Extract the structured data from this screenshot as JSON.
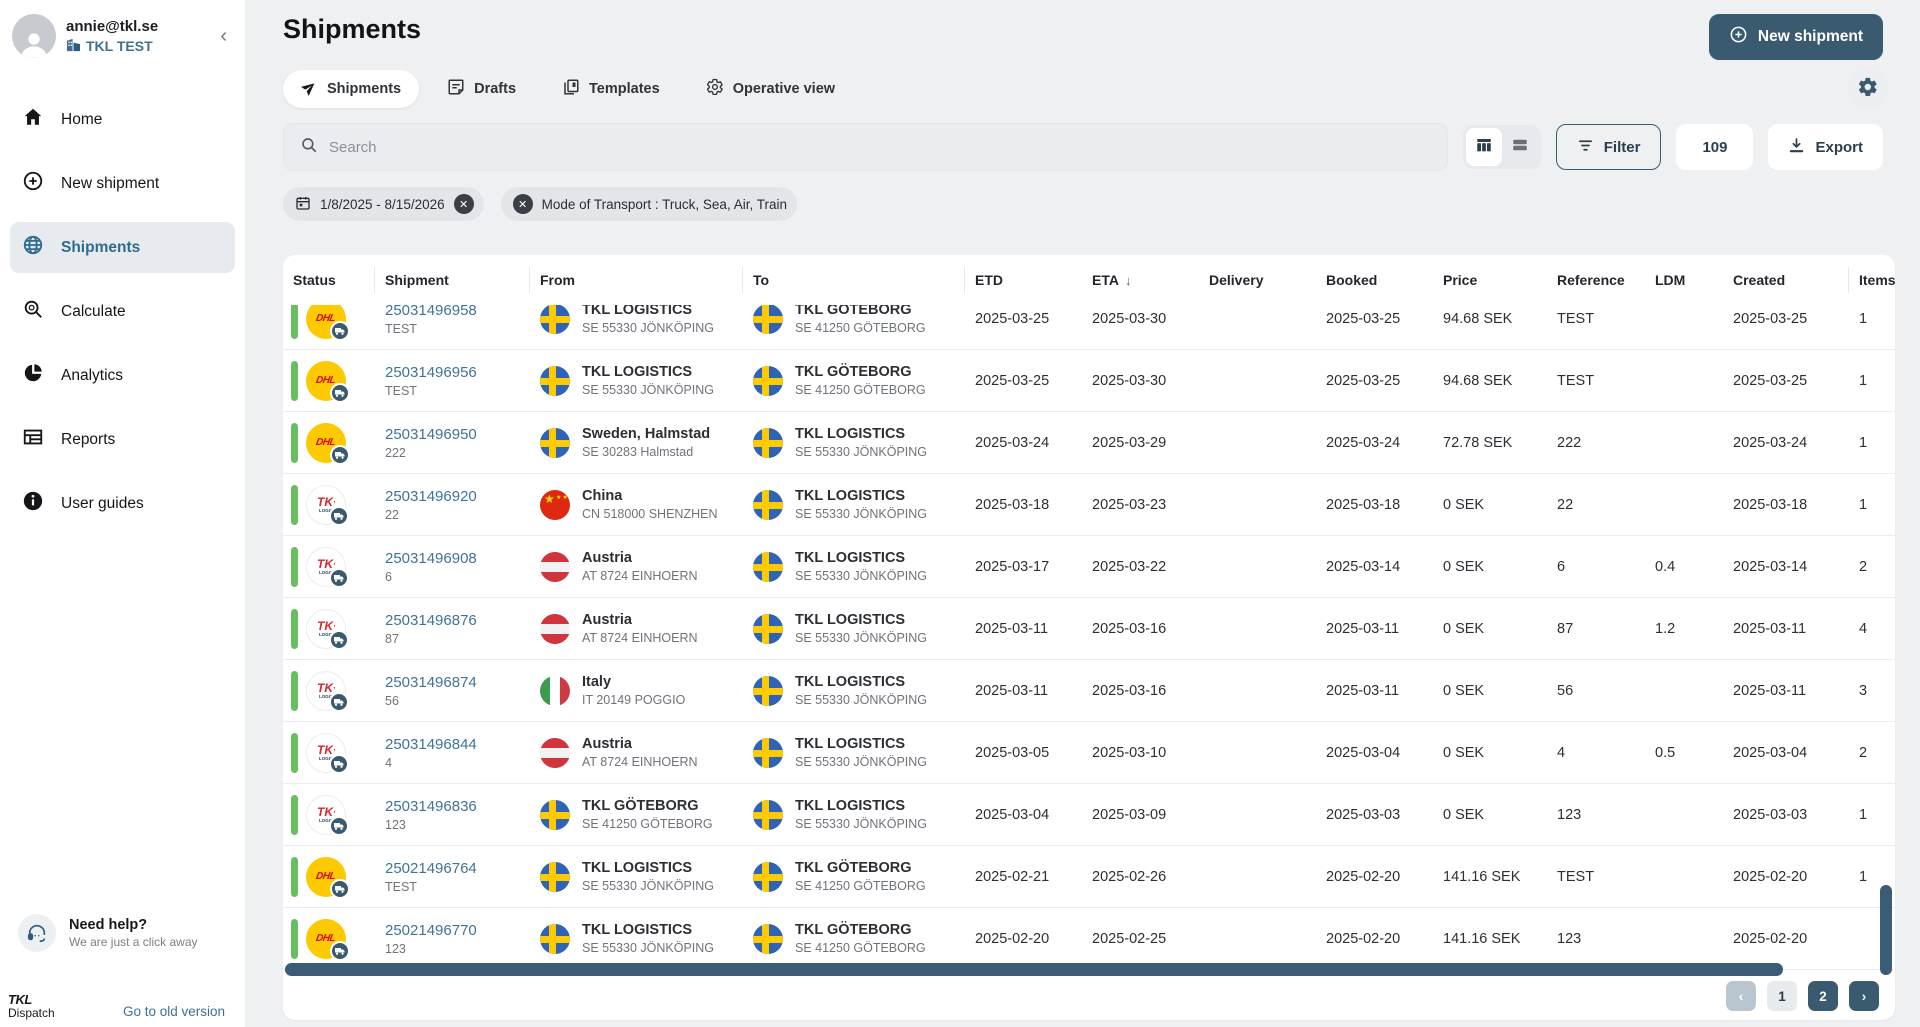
{
  "colors": {
    "primary": "#3a5a70",
    "link": "#3f7397",
    "status_green": "#6abe62",
    "page_bg": "#eff0f2",
    "dhl_yellow": "#fdc900",
    "dhl_red": "#d40511"
  },
  "sidebar": {
    "user": {
      "email": "annie@tkl.se",
      "company": "TKL TEST"
    },
    "items": [
      {
        "label": "Home",
        "icon": "home-icon",
        "active": false
      },
      {
        "label": "New shipment",
        "icon": "plus-circle-icon",
        "active": false
      },
      {
        "label": "Shipments",
        "icon": "globe-icon",
        "active": true
      },
      {
        "label": "Calculate",
        "icon": "magnifier-icon",
        "active": false
      },
      {
        "label": "Analytics",
        "icon": "pie-chart-icon",
        "active": false
      },
      {
        "label": "Reports",
        "icon": "report-table-icon",
        "active": false
      },
      {
        "label": "User guides",
        "icon": "info-icon",
        "active": false
      }
    ],
    "help": {
      "title": "Need help?",
      "subtitle": "We are just a click away"
    },
    "logo": {
      "line1": "TKL",
      "line2": "Dispatch"
    },
    "old_version_link": "Go to old version"
  },
  "header": {
    "title": "Shipments",
    "new_shipment_label": "New shipment"
  },
  "tabs": [
    {
      "label": "Shipments",
      "icon": "send-icon",
      "active": true
    },
    {
      "label": "Drafts",
      "icon": "draft-note-icon",
      "active": false
    },
    {
      "label": "Templates",
      "icon": "templates-icon",
      "active": false
    },
    {
      "label": "Operative view",
      "icon": "gear-icon",
      "active": false
    }
  ],
  "toolbar": {
    "search_placeholder": "Search",
    "filter_label": "Filter",
    "result_count": "109",
    "export_label": "Export"
  },
  "filter_chips": [
    {
      "label": "1/8/2025 - 8/15/2026",
      "leading_icon": "calendar-icon",
      "close": "x"
    },
    {
      "label": "Mode of Transport : Truck, Sea, Air, Train",
      "leading_icon": "x-circle-icon",
      "close": ""
    }
  ],
  "table": {
    "columns": [
      {
        "key": "status",
        "label": "Status"
      },
      {
        "key": "shipment",
        "label": "Shipment"
      },
      {
        "key": "from",
        "label": "From"
      },
      {
        "key": "to",
        "label": "To"
      },
      {
        "key": "etd",
        "label": "ETD"
      },
      {
        "key": "eta",
        "label": "ETA",
        "sort": "desc"
      },
      {
        "key": "delivery",
        "label": "Delivery"
      },
      {
        "key": "booked",
        "label": "Booked"
      },
      {
        "key": "price",
        "label": "Price"
      },
      {
        "key": "reference",
        "label": "Reference"
      },
      {
        "key": "ldm",
        "label": "LDM"
      },
      {
        "key": "created",
        "label": "Created"
      },
      {
        "key": "items",
        "label": "Items"
      }
    ],
    "rows": [
      {
        "status": "green",
        "carrier": "dhl",
        "number": "25031496958",
        "ref": "TEST",
        "from": {
          "flag": "sweden",
          "name": "TKL LOGISTICS",
          "sub": "SE 55330 JÖNKÖPING"
        },
        "to": {
          "flag": "sweden",
          "name": "TKL GÖTEBORG",
          "sub": "SE 41250 GÖTEBORG"
        },
        "etd": "2025-03-25",
        "eta": "2025-03-30",
        "delivery": "",
        "booked": "2025-03-25",
        "price": "94.68 SEK",
        "reference": "TEST",
        "ldm": "",
        "created": "2025-03-25",
        "items": "1"
      },
      {
        "status": "green",
        "carrier": "dhl",
        "number": "25031496956",
        "ref": "TEST",
        "from": {
          "flag": "sweden",
          "name": "TKL LOGISTICS",
          "sub": "SE 55330 JÖNKÖPING"
        },
        "to": {
          "flag": "sweden",
          "name": "TKL GÖTEBORG",
          "sub": "SE 41250 GÖTEBORG"
        },
        "etd": "2025-03-25",
        "eta": "2025-03-30",
        "delivery": "",
        "booked": "2025-03-25",
        "price": "94.68 SEK",
        "reference": "TEST",
        "ldm": "",
        "created": "2025-03-25",
        "items": "1"
      },
      {
        "status": "green",
        "carrier": "dhl",
        "number": "25031496950",
        "ref": "222",
        "from": {
          "flag": "sweden",
          "name": "Sweden, Halmstad",
          "sub": "SE 30283 Halmstad"
        },
        "to": {
          "flag": "sweden",
          "name": "TKL LOGISTICS",
          "sub": "SE 55330 JÖNKÖPING"
        },
        "etd": "2025-03-24",
        "eta": "2025-03-29",
        "delivery": "",
        "booked": "2025-03-24",
        "price": "72.78 SEK",
        "reference": "222",
        "ldm": "",
        "created": "2025-03-24",
        "items": "1"
      },
      {
        "status": "green",
        "carrier": "tkl",
        "number": "25031496920",
        "ref": "22",
        "from": {
          "flag": "china",
          "name": "China",
          "sub": "CN 518000 SHENZHEN"
        },
        "to": {
          "flag": "sweden",
          "name": "TKL LOGISTICS",
          "sub": "SE 55330 JÖNKÖPING"
        },
        "etd": "2025-03-18",
        "eta": "2025-03-23",
        "delivery": "",
        "booked": "2025-03-18",
        "price": "0 SEK",
        "reference": "22",
        "ldm": "",
        "created": "2025-03-18",
        "items": "1"
      },
      {
        "status": "green",
        "carrier": "tkl",
        "number": "25031496908",
        "ref": "6",
        "from": {
          "flag": "austria",
          "name": "Austria",
          "sub": "AT 8724 EINHOERN"
        },
        "to": {
          "flag": "sweden",
          "name": "TKL LOGISTICS",
          "sub": "SE 55330 JÖNKÖPING"
        },
        "etd": "2025-03-17",
        "eta": "2025-03-22",
        "delivery": "",
        "booked": "2025-03-14",
        "price": "0 SEK",
        "reference": "6",
        "ldm": "0.4",
        "created": "2025-03-14",
        "items": "2"
      },
      {
        "status": "green",
        "carrier": "tkl",
        "number": "25031496876",
        "ref": "87",
        "from": {
          "flag": "austria",
          "name": "Austria",
          "sub": "AT 8724 EINHOERN"
        },
        "to": {
          "flag": "sweden",
          "name": "TKL LOGISTICS",
          "sub": "SE 55330 JÖNKÖPING"
        },
        "etd": "2025-03-11",
        "eta": "2025-03-16",
        "delivery": "",
        "booked": "2025-03-11",
        "price": "0 SEK",
        "reference": "87",
        "ldm": "1.2",
        "created": "2025-03-11",
        "items": "4"
      },
      {
        "status": "green",
        "carrier": "tkl",
        "number": "25031496874",
        "ref": "56",
        "from": {
          "flag": "italy",
          "name": "Italy",
          "sub": "IT 20149 POGGIO"
        },
        "to": {
          "flag": "sweden",
          "name": "TKL LOGISTICS",
          "sub": "SE 55330 JÖNKÖPING"
        },
        "etd": "2025-03-11",
        "eta": "2025-03-16",
        "delivery": "",
        "booked": "2025-03-11",
        "price": "0 SEK",
        "reference": "56",
        "ldm": "",
        "created": "2025-03-11",
        "items": "3"
      },
      {
        "status": "green",
        "carrier": "tkl",
        "number": "25031496844",
        "ref": "4",
        "from": {
          "flag": "austria",
          "name": "Austria",
          "sub": "AT 8724 EINHOERN"
        },
        "to": {
          "flag": "sweden",
          "name": "TKL LOGISTICS",
          "sub": "SE 55330 JÖNKÖPING"
        },
        "etd": "2025-03-05",
        "eta": "2025-03-10",
        "delivery": "",
        "booked": "2025-03-04",
        "price": "0 SEK",
        "reference": "4",
        "ldm": "0.5",
        "created": "2025-03-04",
        "items": "2"
      },
      {
        "status": "green",
        "carrier": "tkl",
        "number": "25031496836",
        "ref": "123",
        "from": {
          "flag": "sweden",
          "name": "TKL GÖTEBORG",
          "sub": "SE 41250 GÖTEBORG"
        },
        "to": {
          "flag": "sweden",
          "name": "TKL LOGISTICS",
          "sub": "SE 55330 JÖNKÖPING"
        },
        "etd": "2025-03-04",
        "eta": "2025-03-09",
        "delivery": "",
        "booked": "2025-03-03",
        "price": "0 SEK",
        "reference": "123",
        "ldm": "",
        "created": "2025-03-03",
        "items": "1"
      },
      {
        "status": "green",
        "carrier": "dhl",
        "number": "25021496764",
        "ref": "TEST",
        "from": {
          "flag": "sweden",
          "name": "TKL LOGISTICS",
          "sub": "SE 55330 JÖNKÖPING"
        },
        "to": {
          "flag": "sweden",
          "name": "TKL GÖTEBORG",
          "sub": "SE 41250 GÖTEBORG"
        },
        "etd": "2025-02-21",
        "eta": "2025-02-26",
        "delivery": "",
        "booked": "2025-02-20",
        "price": "141.16 SEK",
        "reference": "TEST",
        "ldm": "",
        "created": "2025-02-20",
        "items": "1"
      },
      {
        "status": "green",
        "carrier": "dhl",
        "number": "25021496770",
        "ref": "123",
        "from": {
          "flag": "sweden",
          "name": "TKL LOGISTICS",
          "sub": "SE 55330 JÖNKÖPING"
        },
        "to": {
          "flag": "sweden",
          "name": "TKL GÖTEBORG",
          "sub": "SE 41250 GÖTEBORG"
        },
        "etd": "2025-02-20",
        "eta": "2025-02-25",
        "delivery": "",
        "booked": "2025-02-20",
        "price": "141.16 SEK",
        "reference": "123",
        "ldm": "",
        "created": "2025-02-20",
        "items": ""
      }
    ]
  },
  "pagination": {
    "prev": "‹",
    "next": "›",
    "pages": [
      "1",
      "2"
    ],
    "active_page": "2"
  }
}
